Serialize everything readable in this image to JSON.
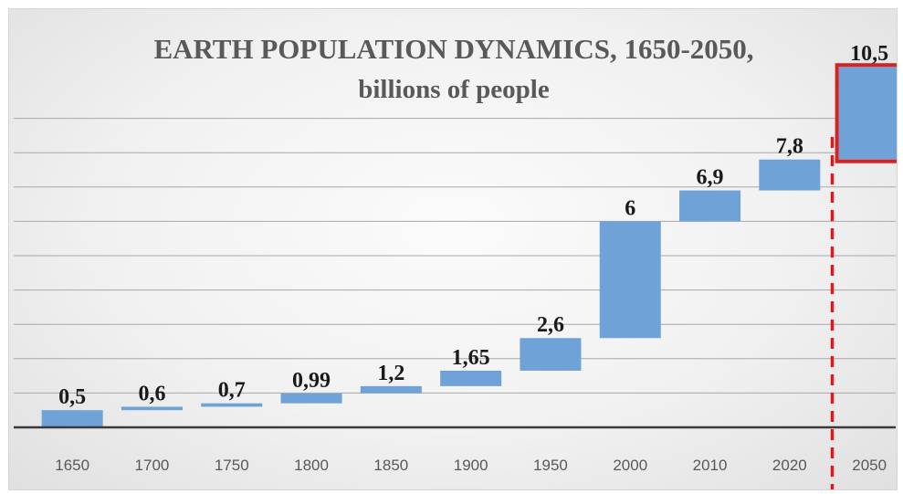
{
  "chart_data": {
    "type": "bar",
    "subtype": "waterfall",
    "title": "EARTH POPULATION DYNAMICS, 1650-2050,",
    "subtitle": "billions of people",
    "categories": [
      "1650",
      "1700",
      "1750",
      "1800",
      "1850",
      "1900",
      "1950",
      "2000",
      "2010",
      "2020",
      "2050"
    ],
    "values": [
      0.5,
      0.6,
      0.7,
      0.99,
      1.2,
      1.65,
      2.6,
      6,
      6.9,
      7.8,
      10.5
    ],
    "data_labels": [
      "0,5",
      "0,6",
      "0,7",
      "0,99",
      "1,2",
      "1,65",
      "2,6",
      "6",
      "6,9",
      "7,8",
      "10,5"
    ],
    "ylim": [
      0,
      11
    ],
    "grid": true,
    "legend": "none",
    "highlight": {
      "category": "2050",
      "box_color": "#d62222",
      "separator_line": "dashed",
      "separator_color": "#e0191b"
    },
    "bar_color": "#6fa2d6",
    "label_color": "#1a1a1a",
    "tick_color": "#595959"
  }
}
